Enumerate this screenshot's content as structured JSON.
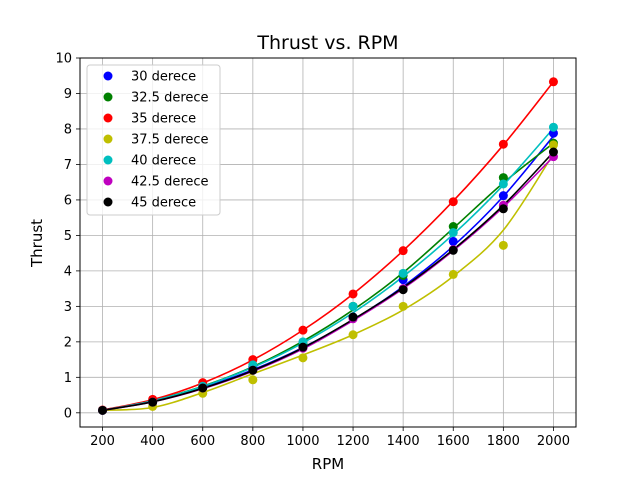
{
  "chart_data": {
    "type": "line",
    "title": "Thrust vs. RPM",
    "xlabel": "RPM",
    "ylabel": "Thrust",
    "xlim": [
      110,
      2090
    ],
    "ylim": [
      -0.4,
      10
    ],
    "xticks": [
      200,
      400,
      600,
      800,
      1000,
      1200,
      1400,
      1600,
      1800,
      2000
    ],
    "yticks": [
      0,
      1,
      2,
      3,
      4,
      5,
      6,
      7,
      8,
      9,
      10
    ],
    "grid": true,
    "legend_position": "top-left",
    "x": [
      200,
      400,
      600,
      800,
      1000,
      1200,
      1400,
      1600,
      1800,
      2000
    ],
    "series": [
      {
        "name": "30 derece",
        "color": "#0000ff",
        "values": [
          0.07,
          0.3,
          0.75,
          1.3,
          1.9,
          2.7,
          3.75,
          4.83,
          6.12,
          7.88
        ],
        "fit": [
          0.07,
          0.33,
          0.71,
          1.21,
          1.84,
          2.62,
          3.56,
          4.7,
          6.1,
          7.8
        ]
      },
      {
        "name": "32.5 derece",
        "color": "#008000",
        "values": [
          0.07,
          0.33,
          0.75,
          1.35,
          1.95,
          3.0,
          3.87,
          5.25,
          6.63,
          7.6
        ],
        "fit": [
          0.07,
          0.35,
          0.75,
          1.3,
          2.02,
          2.9,
          3.95,
          5.2,
          6.48,
          7.6
        ]
      },
      {
        "name": "35 derece",
        "color": "#ff0000",
        "values": [
          0.08,
          0.38,
          0.85,
          1.5,
          2.33,
          3.35,
          4.57,
          5.95,
          7.57,
          9.33
        ],
        "fit": [
          0.08,
          0.37,
          0.84,
          1.49,
          2.33,
          3.35,
          4.57,
          5.97,
          7.55,
          9.33
        ]
      },
      {
        "name": "37.5 derece",
        "color": "#bfbf00",
        "values": [
          0.07,
          0.18,
          0.55,
          0.93,
          1.55,
          2.2,
          3.0,
          3.9,
          4.72,
          7.55
        ],
        "fit": [
          0.07,
          0.15,
          0.57,
          1.1,
          1.63,
          2.2,
          2.9,
          3.85,
          5.15,
          7.3
        ]
      },
      {
        "name": "40 derece",
        "color": "#00bfbf",
        "values": [
          0.07,
          0.3,
          0.75,
          1.35,
          2.0,
          3.0,
          3.93,
          5.08,
          6.45,
          8.05
        ],
        "fit": [
          0.07,
          0.34,
          0.74,
          1.28,
          1.97,
          2.82,
          3.84,
          5.03,
          6.42,
          8.02
        ]
      },
      {
        "name": "42.5 derece",
        "color": "#bf00bf",
        "values": [
          0.07,
          0.3,
          0.7,
          1.2,
          1.82,
          2.65,
          3.5,
          4.6,
          5.85,
          7.22
        ],
        "fit": [
          0.07,
          0.31,
          0.68,
          1.17,
          1.8,
          2.6,
          3.5,
          4.57,
          5.8,
          7.22
        ]
      },
      {
        "name": "45 derece",
        "color": "#000000",
        "values": [
          0.07,
          0.3,
          0.7,
          1.2,
          1.85,
          2.7,
          3.47,
          4.58,
          5.75,
          7.35
        ],
        "fit": [
          0.07,
          0.31,
          0.69,
          1.19,
          1.83,
          2.63,
          3.53,
          4.6,
          5.85,
          7.35
        ]
      }
    ]
  }
}
